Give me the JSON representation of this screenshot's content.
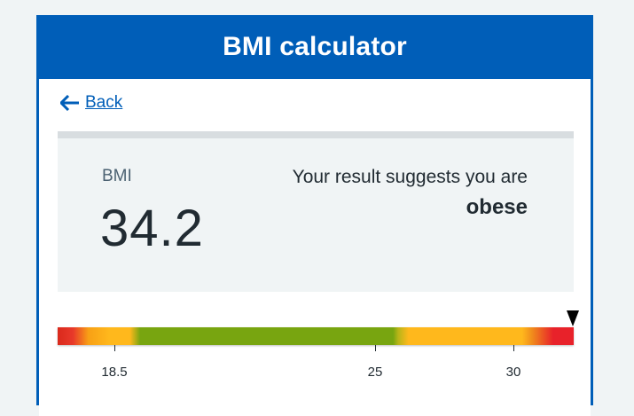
{
  "header": {
    "title": "BMI calculator"
  },
  "back": {
    "label": "Back",
    "icon": "arrow-left-icon"
  },
  "result": {
    "bmi_label": "BMI",
    "bmi_value": "34.2",
    "suggest_text": "Your result suggests you are",
    "category": "obese"
  },
  "scale": {
    "value": 34.2,
    "ticks": [
      {
        "value": 18.5,
        "label": "18.5"
      },
      {
        "value": 25,
        "label": "25"
      },
      {
        "value": 30,
        "label": "30"
      }
    ],
    "colors": {
      "underweight": "#ffb81c",
      "healthy": "#78a510",
      "overweight": "#ffb81c",
      "obese": "#e8222a"
    }
  },
  "colors": {
    "brand_blue": "#005eb8",
    "text_dark": "#212b32",
    "text_secondary": "#4c6272",
    "panel_bg": "#f0f4f5"
  }
}
